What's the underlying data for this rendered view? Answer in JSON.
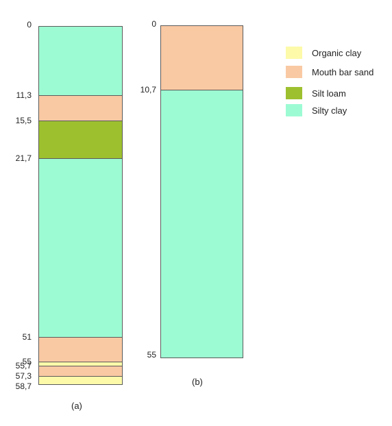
{
  "materials": {
    "organic_clay": {
      "label": "Organic clay",
      "color": "#fdfaa9"
    },
    "mouth_bar_sand": {
      "label": "Mouth bar sand",
      "color": "#f9c9a3"
    },
    "silt_loam": {
      "label": "Silt loam",
      "color": "#9dc02f"
    },
    "silty_clay": {
      "label": "Silty clay",
      "color": "#9dfbd3"
    }
  },
  "legend": [
    {
      "key": "organic_clay",
      "label": "Organic clay",
      "color": "#fdfaa9"
    },
    {
      "key": "mouth_bar_sand",
      "label": "Mouth bar sand",
      "color": "#f9c9a3"
    },
    {
      "key": "silt_loam",
      "label": "Silt loam",
      "color": "#9dc02f"
    },
    {
      "key": "silty_clay",
      "label": "Silty clay",
      "color": "#9dfbd3"
    }
  ],
  "columns": [
    {
      "caption": "(a)",
      "total_depth": 58.7,
      "depth_labels": [
        "0",
        "11,3",
        "15,5",
        "21,7",
        "51",
        "55",
        "55,7",
        "57,3",
        "58,7"
      ],
      "layers": [
        {
          "top": 0,
          "bottom": 11.3,
          "material": "silty_clay"
        },
        {
          "top": 11.3,
          "bottom": 15.5,
          "material": "mouth_bar_sand"
        },
        {
          "top": 15.5,
          "bottom": 21.7,
          "material": "silt_loam"
        },
        {
          "top": 21.7,
          "bottom": 51,
          "material": "silty_clay"
        },
        {
          "top": 51,
          "bottom": 55,
          "material": "mouth_bar_sand"
        },
        {
          "top": 55,
          "bottom": 55.7,
          "material": "organic_clay"
        },
        {
          "top": 55.7,
          "bottom": 57.3,
          "material": "mouth_bar_sand"
        },
        {
          "top": 57.3,
          "bottom": 58.7,
          "material": "organic_clay"
        }
      ]
    },
    {
      "caption": "(b)",
      "total_depth": 55,
      "depth_labels": [
        "0",
        "10,7",
        "55"
      ],
      "layers": [
        {
          "top": 0,
          "bottom": 10.7,
          "material": "mouth_bar_sand"
        },
        {
          "top": 10.7,
          "bottom": 55,
          "material": "silty_clay"
        }
      ]
    }
  ]
}
